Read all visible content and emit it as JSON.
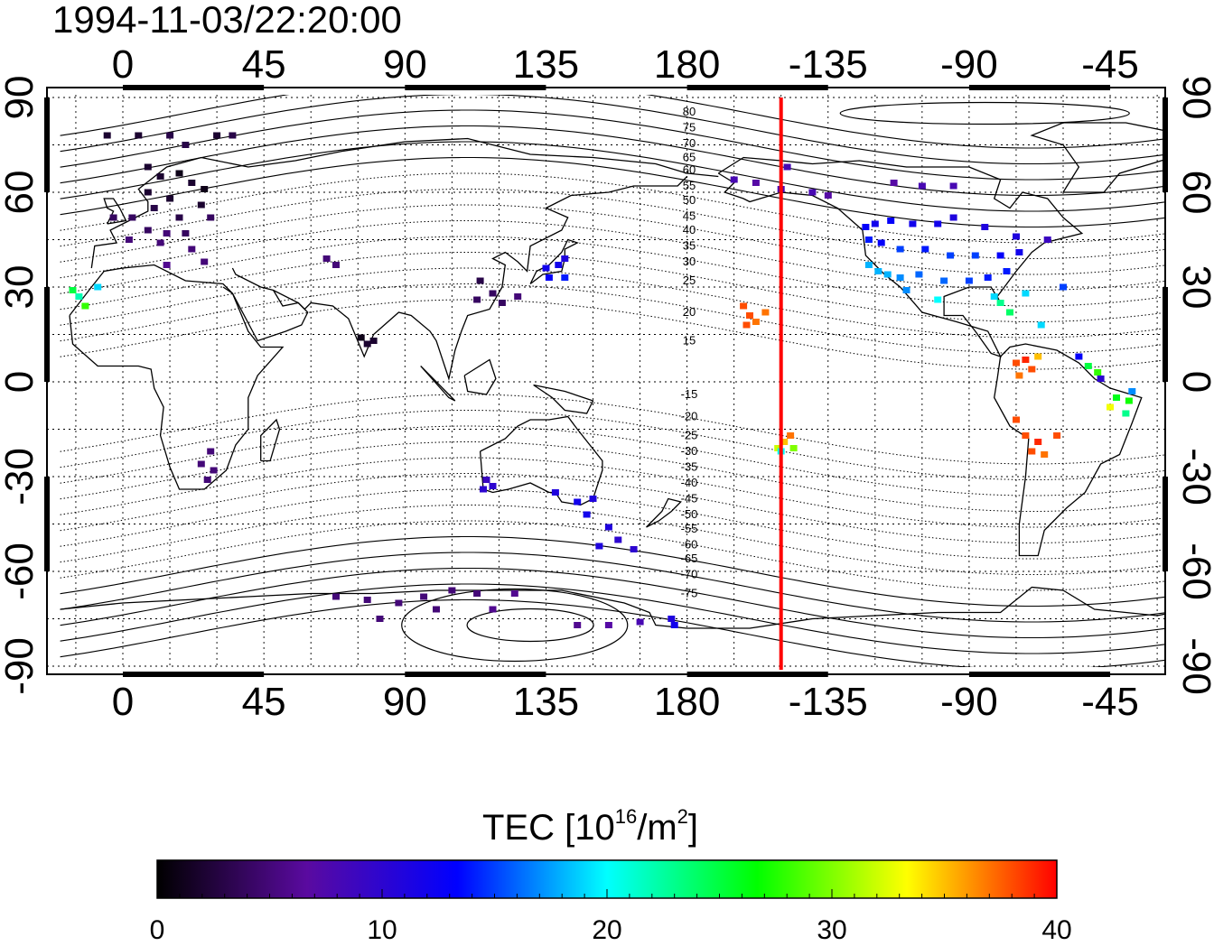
{
  "title": "1994-11-03/22:20:00",
  "colorbar": {
    "label_prefix": "TEC  [10",
    "label_exp1": "16",
    "label_mid": "/m",
    "label_exp2": "2",
    "label_suffix": "]",
    "ticks": [
      "0",
      "10",
      "20",
      "30",
      "40"
    ],
    "range": [
      0,
      40
    ],
    "colors": [
      "#000000",
      "#5a0aa0",
      "#0000ff",
      "#00ffff",
      "#00ff00",
      "#ffff00",
      "#ff0000"
    ]
  },
  "chart_data": {
    "type": "map",
    "lon_ticks": [
      "0",
      "45",
      "90",
      "135",
      "180",
      "-135",
      "-90",
      "-45"
    ],
    "lat_ticks": [
      "90",
      "60",
      "30",
      "0",
      "-30",
      "-60",
      "-90"
    ],
    "xlim": [
      -20,
      340
    ],
    "ylim": [
      -90,
      90
    ],
    "grid": true,
    "terminator_lon": 210,
    "contour_labels": [
      {
        "text": "80",
        "lat": 85.5
      },
      {
        "text": "75",
        "lat": 80.5
      },
      {
        "text": "70",
        "lat": 75.5
      },
      {
        "text": "65",
        "lat": 71
      },
      {
        "text": "60",
        "lat": 67
      },
      {
        "text": "55",
        "lat": 62
      },
      {
        "text": "50",
        "lat": 57.5
      },
      {
        "text": "45",
        "lat": 52.5
      },
      {
        "text": "40",
        "lat": 48
      },
      {
        "text": "35",
        "lat": 43
      },
      {
        "text": "30",
        "lat": 38
      },
      {
        "text": "25",
        "lat": 32
      },
      {
        "text": "20",
        "lat": 22
      },
      {
        "text": "15",
        "lat": 13
      },
      {
        "text": "-15",
        "lat": -4
      },
      {
        "text": "-20",
        "lat": -11
      },
      {
        "text": "-25",
        "lat": -17
      },
      {
        "text": "-30",
        "lat": -22
      },
      {
        "text": "-35",
        "lat": -27
      },
      {
        "text": "-40",
        "lat": -32
      },
      {
        "text": "-45",
        "lat": -37
      },
      {
        "text": "-50",
        "lat": -42
      },
      {
        "text": "-55",
        "lat": -46.5
      },
      {
        "text": "-60",
        "lat": -51.5
      },
      {
        "text": "-65",
        "lat": -56
      },
      {
        "text": "-70",
        "lat": -61
      },
      {
        "text": "-75",
        "lat": -67
      }
    ],
    "tec_points": [
      {
        "lon": -5,
        "lat": 78,
        "tec": 2
      },
      {
        "lon": 5,
        "lat": 78,
        "tec": 2
      },
      {
        "lon": 15,
        "lat": 78,
        "tec": 3
      },
      {
        "lon": 20,
        "lat": 75,
        "tec": 3
      },
      {
        "lon": 30,
        "lat": 78,
        "tec": 2
      },
      {
        "lon": 35,
        "lat": 78,
        "tec": 3
      },
      {
        "lon": 8,
        "lat": 68,
        "tec": 2
      },
      {
        "lon": 12,
        "lat": 65,
        "tec": 2
      },
      {
        "lon": 18,
        "lat": 66,
        "tec": 1
      },
      {
        "lon": 22,
        "lat": 63,
        "tec": 2
      },
      {
        "lon": 26,
        "lat": 61,
        "tec": 1
      },
      {
        "lon": 8,
        "lat": 60,
        "tec": 2
      },
      {
        "lon": 15,
        "lat": 58,
        "tec": 2
      },
      {
        "lon": 25,
        "lat": 56,
        "tec": 2
      },
      {
        "lon": 10,
        "lat": 55,
        "tec": 3
      },
      {
        "lon": 18,
        "lat": 52,
        "tec": 3
      },
      {
        "lon": 28,
        "lat": 52,
        "tec": 4
      },
      {
        "lon": 3,
        "lat": 52,
        "tec": 4
      },
      {
        "lon": -3,
        "lat": 52,
        "tec": 4
      },
      {
        "lon": 8,
        "lat": 48,
        "tec": 4
      },
      {
        "lon": 14,
        "lat": 47,
        "tec": 5
      },
      {
        "lon": 20,
        "lat": 47,
        "tec": 4
      },
      {
        "lon": 2,
        "lat": 45,
        "tec": 5
      },
      {
        "lon": 12,
        "lat": 44,
        "tec": 5
      },
      {
        "lon": 22,
        "lat": 42,
        "tec": 5
      },
      {
        "lon": 26,
        "lat": 38,
        "tec": 5
      },
      {
        "lon": 14,
        "lat": 37,
        "tec": 6
      },
      {
        "lon": -16,
        "lat": 29,
        "tec": 25
      },
      {
        "lon": -14,
        "lat": 27,
        "tec": 22
      },
      {
        "lon": -12,
        "lat": 24,
        "tec": 28
      },
      {
        "lon": -8,
        "lat": 30,
        "tec": 19
      },
      {
        "lon": 65,
        "lat": 39,
        "tec": 5
      },
      {
        "lon": 68,
        "lat": 37,
        "tec": 5
      },
      {
        "lon": 76,
        "lat": 14,
        "tec": 1
      },
      {
        "lon": 78,
        "lat": 12,
        "tec": 2
      },
      {
        "lon": 80,
        "lat": 13,
        "tec": 2
      },
      {
        "lon": 28,
        "lat": -22,
        "tec": 5
      },
      {
        "lon": 25,
        "lat": -26,
        "tec": 5
      },
      {
        "lon": 29,
        "lat": -28,
        "tec": 5
      },
      {
        "lon": 27,
        "lat": -31,
        "tec": 5
      },
      {
        "lon": 113,
        "lat": 26,
        "tec": 4
      },
      {
        "lon": 118,
        "lat": 28,
        "tec": 4
      },
      {
        "lon": 121,
        "lat": 25,
        "tec": 4
      },
      {
        "lon": 126,
        "lat": 27,
        "tec": 5
      },
      {
        "lon": 114,
        "lat": 32,
        "tec": 3
      },
      {
        "lon": 135,
        "lat": 36,
        "tec": 12
      },
      {
        "lon": 139,
        "lat": 37,
        "tec": 12
      },
      {
        "lon": 141,
        "lat": 39,
        "tec": 11
      },
      {
        "lon": 136,
        "lat": 33,
        "tec": 13
      },
      {
        "lon": 141,
        "lat": 33,
        "tec": 14
      },
      {
        "lon": 116,
        "lat": -31,
        "tec": 9
      },
      {
        "lon": 118,
        "lat": -33,
        "tec": 10
      },
      {
        "lon": 115,
        "lat": -34,
        "tec": 10
      },
      {
        "lon": 138,
        "lat": -35,
        "tec": 11
      },
      {
        "lon": 145,
        "lat": -38,
        "tec": 12
      },
      {
        "lon": 150,
        "lat": -37,
        "tec": 11
      },
      {
        "lon": 148,
        "lat": -42,
        "tec": 12
      },
      {
        "lon": 155,
        "lat": -46,
        "tec": 11
      },
      {
        "lon": 158,
        "lat": -50,
        "tec": 10
      },
      {
        "lon": 152,
        "lat": -52,
        "tec": 11
      },
      {
        "lon": 163,
        "lat": -53,
        "tec": 10
      },
      {
        "lon": 68,
        "lat": -68,
        "tec": 5
      },
      {
        "lon": 78,
        "lat": -69,
        "tec": 5
      },
      {
        "lon": 88,
        "lat": -70,
        "tec": 5
      },
      {
        "lon": 96,
        "lat": -68,
        "tec": 5
      },
      {
        "lon": 105,
        "lat": -66,
        "tec": 5
      },
      {
        "lon": 113,
        "lat": -67,
        "tec": 5
      },
      {
        "lon": 125,
        "lat": -67,
        "tec": 6
      },
      {
        "lon": 82,
        "lat": -75,
        "tec": 5
      },
      {
        "lon": 100,
        "lat": -72,
        "tec": 5
      },
      {
        "lon": 118,
        "lat": -72,
        "tec": 6
      },
      {
        "lon": 145,
        "lat": -77,
        "tec": 6
      },
      {
        "lon": 155,
        "lat": -77,
        "tec": 7
      },
      {
        "lon": 165,
        "lat": -76,
        "tec": 8
      },
      {
        "lon": 175,
        "lat": -75,
        "tec": 11
      },
      {
        "lon": 176,
        "lat": -77,
        "tec": 12
      },
      {
        "lon": 200,
        "lat": 21,
        "tec": 38
      },
      {
        "lon": 202,
        "lat": 19,
        "tec": 37
      },
      {
        "lon": 199,
        "lat": 18,
        "tec": 38
      },
      {
        "lon": 205,
        "lat": 22,
        "tec": 37
      },
      {
        "lon": 198,
        "lat": 24,
        "tec": 38
      },
      {
        "lon": 213,
        "lat": -17,
        "tec": 37
      },
      {
        "lon": 211,
        "lat": -19,
        "tec": 35
      },
      {
        "lon": 214,
        "lat": -21,
        "tec": 30
      },
      {
        "lon": 209,
        "lat": -21,
        "tec": 32
      },
      {
        "lon": 210,
        "lat": -22,
        "tec": 20
      },
      {
        "lon": -165,
        "lat": 64,
        "tec": 8
      },
      {
        "lon": -158,
        "lat": 63,
        "tec": 7
      },
      {
        "lon": -150,
        "lat": 61,
        "tec": 8
      },
      {
        "lon": -148,
        "lat": 68,
        "tec": 8
      },
      {
        "lon": -140,
        "lat": 60,
        "tec": 8
      },
      {
        "lon": -135,
        "lat": 59,
        "tec": 7
      },
      {
        "lon": -114,
        "lat": 63,
        "tec": 7
      },
      {
        "lon": -105,
        "lat": 62,
        "tec": 8
      },
      {
        "lon": -95,
        "lat": 62,
        "tec": 8
      },
      {
        "lon": -123,
        "lat": 49,
        "tec": 13
      },
      {
        "lon": -120,
        "lat": 50,
        "tec": 12
      },
      {
        "lon": -115,
        "lat": 51,
        "tec": 13
      },
      {
        "lon": -108,
        "lat": 50,
        "tec": 12
      },
      {
        "lon": -100,
        "lat": 50,
        "tec": 12
      },
      {
        "lon": -95,
        "lat": 52,
        "tec": 11
      },
      {
        "lon": -85,
        "lat": 49,
        "tec": 11
      },
      {
        "lon": -75,
        "lat": 46,
        "tec": 11
      },
      {
        "lon": -65,
        "lat": 45,
        "tec": 9
      },
      {
        "lon": -122,
        "lat": 45,
        "tec": 14
      },
      {
        "lon": -118,
        "lat": 44,
        "tec": 13
      },
      {
        "lon": -112,
        "lat": 42,
        "tec": 15
      },
      {
        "lon": -104,
        "lat": 42,
        "tec": 14
      },
      {
        "lon": -96,
        "lat": 40,
        "tec": 15
      },
      {
        "lon": -88,
        "lat": 40,
        "tec": 15
      },
      {
        "lon": -80,
        "lat": 40,
        "tec": 13
      },
      {
        "lon": -74,
        "lat": 41,
        "tec": 12
      },
      {
        "lon": -122,
        "lat": 37,
        "tec": 18
      },
      {
        "lon": -119,
        "lat": 35,
        "tec": 18
      },
      {
        "lon": -116,
        "lat": 34,
        "tec": 18
      },
      {
        "lon": -112,
        "lat": 33,
        "tec": 17
      },
      {
        "lon": -106,
        "lat": 34,
        "tec": 16
      },
      {
        "lon": -98,
        "lat": 32,
        "tec": 16
      },
      {
        "lon": -90,
        "lat": 32,
        "tec": 15
      },
      {
        "lon": -84,
        "lat": 33,
        "tec": 14
      },
      {
        "lon": -78,
        "lat": 35,
        "tec": 14
      },
      {
        "lon": -110,
        "lat": 29,
        "tec": 17
      },
      {
        "lon": -100,
        "lat": 26,
        "tec": 20
      },
      {
        "lon": -82,
        "lat": 27,
        "tec": 19
      },
      {
        "lon": -80,
        "lat": 25,
        "tec": 23
      },
      {
        "lon": -77,
        "lat": 22,
        "tec": 24
      },
      {
        "lon": -72,
        "lat": 28,
        "tec": 19
      },
      {
        "lon": -67,
        "lat": 18,
        "tec": 19
      },
      {
        "lon": -60,
        "lat": 30,
        "tec": 15
      },
      {
        "lon": -75,
        "lat": 6,
        "tec": 38
      },
      {
        "lon": -72,
        "lat": 7,
        "tec": 39
      },
      {
        "lon": -70,
        "lat": 4,
        "tec": 38
      },
      {
        "lon": -74,
        "lat": 2,
        "tec": 37
      },
      {
        "lon": -68,
        "lat": 8,
        "tec": 35
      },
      {
        "lon": -52,
        "lat": 5,
        "tec": 25
      },
      {
        "lon": -49,
        "lat": 3,
        "tec": 28
      },
      {
        "lon": -55,
        "lat": 8,
        "tec": 13
      },
      {
        "lon": -48,
        "lat": 1,
        "tec": 10
      },
      {
        "lon": -43,
        "lat": -5,
        "tec": 26
      },
      {
        "lon": -39,
        "lat": -6,
        "tec": 27
      },
      {
        "lon": -38,
        "lat": -3,
        "tec": 17
      },
      {
        "lon": -45,
        "lat": -8,
        "tec": 33
      },
      {
        "lon": -40,
        "lat": -10,
        "tec": 23
      },
      {
        "lon": -72,
        "lat": -17,
        "tec": 38
      },
      {
        "lon": -68,
        "lat": -19,
        "tec": 39
      },
      {
        "lon": -70,
        "lat": -22,
        "tec": 38
      },
      {
        "lon": -75,
        "lat": -12,
        "tec": 38
      },
      {
        "lon": -66,
        "lat": -23,
        "tec": 37
      },
      {
        "lon": -62,
        "lat": -17,
        "tec": 38
      }
    ]
  }
}
